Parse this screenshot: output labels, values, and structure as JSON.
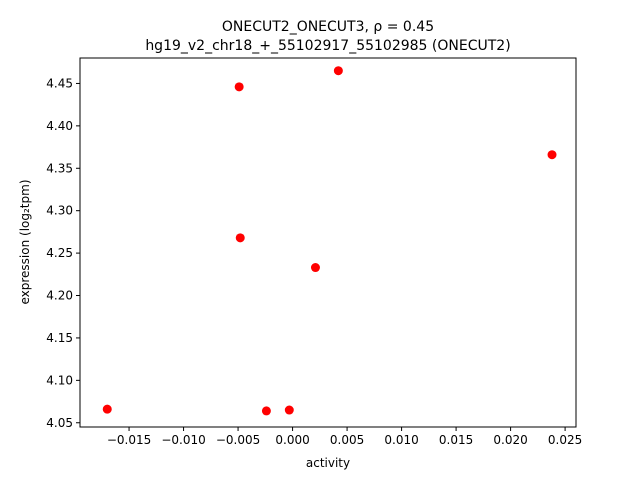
{
  "chart_data": {
    "type": "scatter",
    "title_line1": "ONECUT2_ONECUT3, ρ = 0.45",
    "title_line2": "hg19_v2_chr18_+_55102917_55102985 (ONECUT2)",
    "xlabel": "activity",
    "ylabel": "expression (log₂tpm)",
    "xlim": [
      -0.0195,
      0.026
    ],
    "ylim": [
      4.045,
      4.48
    ],
    "xticks": [
      -0.015,
      -0.01,
      -0.005,
      0.0,
      0.005,
      0.01,
      0.015,
      0.02,
      0.025
    ],
    "xtick_labels": [
      "−0.015",
      "−0.010",
      "−0.005",
      "0.000",
      "0.005",
      "0.010",
      "0.015",
      "0.020",
      "0.025"
    ],
    "yticks": [
      4.05,
      4.1,
      4.15,
      4.2,
      4.25,
      4.3,
      4.35,
      4.4,
      4.45
    ],
    "ytick_labels": [
      "4.05",
      "4.10",
      "4.15",
      "4.20",
      "4.25",
      "4.30",
      "4.35",
      "4.40",
      "4.45"
    ],
    "grid": false,
    "marker_color": "#ff0000",
    "points": [
      {
        "x": -0.017,
        "y": 4.066
      },
      {
        "x": -0.0049,
        "y": 4.446
      },
      {
        "x": -0.0048,
        "y": 4.268
      },
      {
        "x": -0.0024,
        "y": 4.064
      },
      {
        "x": -0.0003,
        "y": 4.065
      },
      {
        "x": 0.0021,
        "y": 4.233
      },
      {
        "x": 0.0042,
        "y": 4.465
      },
      {
        "x": 0.0238,
        "y": 4.366
      }
    ]
  }
}
